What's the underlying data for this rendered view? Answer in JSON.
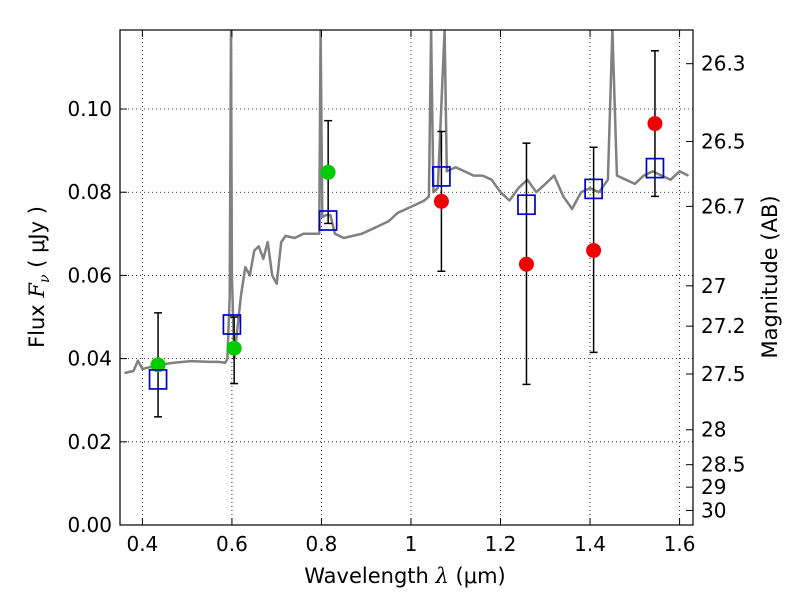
{
  "chart_data": {
    "type": "scatter",
    "xlabel_text": "Wavelength",
    "xlabel_symbol": "λ",
    "xlabel_unit": "(μm)",
    "ylabel_text": "Flux",
    "ylabel_symbol": "F",
    "ylabel_subscript": "ν",
    "ylabel_unit": "( μJy )",
    "y2label": "Magnitude (AB)",
    "xlim": [
      0.35,
      1.63
    ],
    "ylim": [
      0.0,
      0.119
    ],
    "xticks": [
      {
        "value": 0.4,
        "label": "0.4"
      },
      {
        "value": 0.6,
        "label": "0.6"
      },
      {
        "value": 0.8,
        "label": "0.8"
      },
      {
        "value": 1.0,
        "label": "1"
      },
      {
        "value": 1.2,
        "label": "1.2"
      },
      {
        "value": 1.4,
        "label": "1.4"
      },
      {
        "value": 1.6,
        "label": "1.6"
      }
    ],
    "yticks": [
      {
        "value": 0.0,
        "label": "0.00"
      },
      {
        "value": 0.02,
        "label": "0.02"
      },
      {
        "value": 0.04,
        "label": "0.04"
      },
      {
        "value": 0.06,
        "label": "0.06"
      },
      {
        "value": 0.08,
        "label": "0.08"
      },
      {
        "value": 0.1,
        "label": "0.10"
      }
    ],
    "y2ticks": [
      {
        "flux": 0.1109,
        "label": "26.3"
      },
      {
        "flux": 0.0922,
        "label": "26.5"
      },
      {
        "flux": 0.0766,
        "label": "26.7"
      },
      {
        "flux": 0.0575,
        "label": "27"
      },
      {
        "flux": 0.0478,
        "label": "27.2"
      },
      {
        "flux": 0.0363,
        "label": "27.5"
      },
      {
        "flux": 0.0229,
        "label": "28"
      },
      {
        "flux": 0.0145,
        "label": "28.5"
      },
      {
        "flux": 0.0091,
        "label": "29"
      },
      {
        "flux": 0.0035,
        "label": "30"
      }
    ],
    "grid": true,
    "spectrum": {
      "color": "#808080",
      "points": [
        [
          0.36,
          0.0365
        ],
        [
          0.37,
          0.0368
        ],
        [
          0.38,
          0.037
        ],
        [
          0.39,
          0.0395
        ],
        [
          0.4,
          0.0375
        ],
        [
          0.41,
          0.0378
        ],
        [
          0.42,
          0.038
        ],
        [
          0.43,
          0.0382
        ],
        [
          0.45,
          0.0387
        ],
        [
          0.47,
          0.039
        ],
        [
          0.49,
          0.0392
        ],
        [
          0.51,
          0.0394
        ],
        [
          0.53,
          0.0393
        ],
        [
          0.55,
          0.0392
        ],
        [
          0.57,
          0.0392
        ],
        [
          0.585,
          0.039
        ],
        [
          0.59,
          0.04
        ],
        [
          0.595,
          0.055
        ],
        [
          0.598,
          0.119
        ],
        [
          0.6,
          0.06
        ],
        [
          0.605,
          0.04
        ],
        [
          0.61,
          0.045
        ],
        [
          0.615,
          0.05
        ],
        [
          0.62,
          0.055
        ],
        [
          0.63,
          0.062
        ],
        [
          0.64,
          0.06
        ],
        [
          0.65,
          0.066
        ],
        [
          0.66,
          0.067
        ],
        [
          0.67,
          0.064
        ],
        [
          0.68,
          0.068
        ],
        [
          0.69,
          0.06
        ],
        [
          0.7,
          0.058
        ],
        [
          0.71,
          0.068
        ],
        [
          0.72,
          0.0695
        ],
        [
          0.74,
          0.069
        ],
        [
          0.76,
          0.07
        ],
        [
          0.78,
          0.07
        ],
        [
          0.795,
          0.07
        ],
        [
          0.798,
          0.119
        ],
        [
          0.802,
          0.074
        ],
        [
          0.81,
          0.0745
        ],
        [
          0.82,
          0.0745
        ],
        [
          0.83,
          0.07
        ],
        [
          0.85,
          0.069
        ],
        [
          0.87,
          0.0695
        ],
        [
          0.89,
          0.07
        ],
        [
          0.91,
          0.071
        ],
        [
          0.93,
          0.072
        ],
        [
          0.95,
          0.073
        ],
        [
          0.97,
          0.075
        ],
        [
          0.99,
          0.076
        ],
        [
          1.01,
          0.077
        ],
        [
          1.03,
          0.078
        ],
        [
          1.04,
          0.079
        ],
        [
          1.045,
          0.119
        ],
        [
          1.05,
          0.08
        ],
        [
          1.06,
          0.081
        ],
        [
          1.075,
          0.119
        ],
        [
          1.08,
          0.085
        ],
        [
          1.1,
          0.086
        ],
        [
          1.12,
          0.085
        ],
        [
          1.14,
          0.084
        ],
        [
          1.16,
          0.084
        ],
        [
          1.18,
          0.083
        ],
        [
          1.2,
          0.08
        ],
        [
          1.22,
          0.078
        ],
        [
          1.24,
          0.081
        ],
        [
          1.26,
          0.083
        ],
        [
          1.28,
          0.08
        ],
        [
          1.3,
          0.082
        ],
        [
          1.32,
          0.084
        ],
        [
          1.34,
          0.079
        ],
        [
          1.36,
          0.076
        ],
        [
          1.38,
          0.08
        ],
        [
          1.4,
          0.081
        ],
        [
          1.42,
          0.08
        ],
        [
          1.44,
          0.083
        ],
        [
          1.45,
          0.119
        ],
        [
          1.46,
          0.084
        ],
        [
          1.48,
          0.083
        ],
        [
          1.5,
          0.082
        ],
        [
          1.52,
          0.084
        ],
        [
          1.54,
          0.085
        ],
        [
          1.56,
          0.084
        ],
        [
          1.58,
          0.083
        ],
        [
          1.6,
          0.085
        ],
        [
          1.62,
          0.084
        ]
      ]
    },
    "model_photometry": {
      "marker": "open-square",
      "color": "#0000cc",
      "points": [
        [
          0.435,
          0.035
        ],
        [
          0.6,
          0.0482
        ],
        [
          0.815,
          0.0732
        ],
        [
          1.068,
          0.0838
        ],
        [
          1.258,
          0.077
        ],
        [
          1.408,
          0.0808
        ],
        [
          1.545,
          0.0858
        ]
      ]
    },
    "observed_photometry": [
      {
        "x": 0.435,
        "y": 0.0385,
        "yerr_low": 0.026,
        "yerr_high": 0.051,
        "color": "#00cc00"
      },
      {
        "x": 0.605,
        "y": 0.0425,
        "yerr_low": 0.034,
        "yerr_high": 0.05,
        "color": "#00cc00"
      },
      {
        "x": 0.815,
        "y": 0.0848,
        "yerr_low": 0.0725,
        "yerr_high": 0.0972,
        "color": "#00cc00"
      },
      {
        "x": 1.068,
        "y": 0.0778,
        "yerr_low": 0.061,
        "yerr_high": 0.0946,
        "color": "#ee0000"
      },
      {
        "x": 1.258,
        "y": 0.0627,
        "yerr_low": 0.0338,
        "yerr_high": 0.0918,
        "color": "#ee0000"
      },
      {
        "x": 1.408,
        "y": 0.066,
        "yerr_low": 0.0415,
        "yerr_high": 0.0908,
        "color": "#ee0000"
      },
      {
        "x": 1.545,
        "y": 0.0965,
        "yerr_low": 0.079,
        "yerr_high": 0.114,
        "color": "#ee0000"
      }
    ]
  }
}
